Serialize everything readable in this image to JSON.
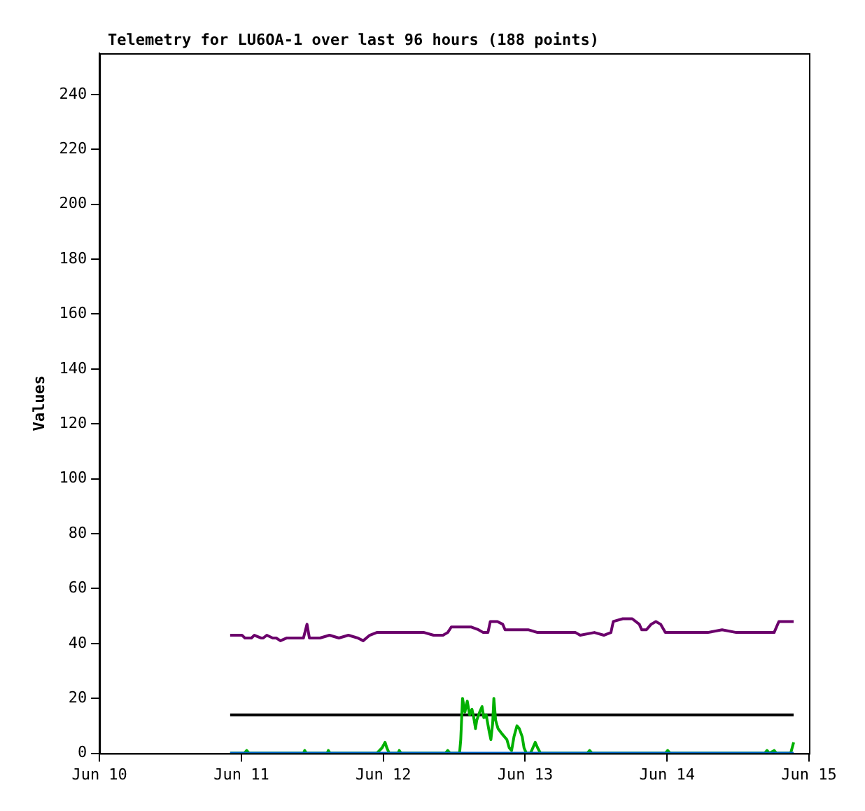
{
  "chart_data": {
    "type": "line",
    "title": "Telemetry for LU6OA-1 over last 96 hours (188 points)",
    "ylabel": "Values",
    "xlim": [
      "--06-10",
      "--06-15"
    ],
    "xticks": [
      {
        "value": "--06-10",
        "label": "Jun 10"
      },
      {
        "value": "--06-11",
        "label": "Jun 11"
      },
      {
        "value": "--06-12",
        "label": "Jun 12"
      },
      {
        "value": "--06-13",
        "label": "Jun 13"
      },
      {
        "value": "--06-14",
        "label": "Jun 14"
      },
      {
        "value": "--06-15",
        "label": "Jun 15"
      }
    ],
    "ylim": [
      0,
      255
    ],
    "yticks": [
      0,
      20,
      40,
      60,
      80,
      100,
      120,
      140,
      160,
      180,
      200,
      220,
      240
    ],
    "grid": false,
    "legend": false,
    "series": [
      {
        "color": "#6b006b",
        "x": [
          "--06-10T22:06",
          "--06-11T00:06",
          "--06-11T00:36",
          "--06-11T01:42",
          "--06-11T02:12",
          "--06-11T03:18",
          "--06-11T03:42",
          "--06-11T04:18",
          "--06-11T05:18",
          "--06-11T05:54",
          "--06-11T06:36",
          "--06-11T07:42",
          "--06-11T10:30",
          "--06-11T11:06",
          "--06-11T11:30",
          "--06-11T13:18",
          "--06-11T14:54",
          "--06-11T16:30",
          "--06-11T18:06",
          "--06-11T19:42",
          "--06-11T20:36",
          "--06-11T21:42",
          "--06-11T22:54",
          "--06-12T00:30",
          "--06-12T02:06",
          "--06-12T05:18",
          "--06-12T06:54",
          "--06-12T08:30",
          "--06-12T10:06",
          "--06-12T10:54",
          "--06-12T11:30",
          "--06-12T13:18",
          "--06-12T14:54",
          "--06-12T16:06",
          "--06-12T16:54",
          "--06-12T17:42",
          "--06-12T18:06",
          "--06-12T19:18",
          "--06-12T20:12",
          "--06-12T20:36",
          "--06-13T00:30",
          "--06-13T02:06",
          "--06-13T03:42",
          "--06-13T08:30",
          "--06-13T09:18",
          "--06-13T11:42",
          "--06-13T13:18",
          "--06-13T14:30",
          "--06-13T14:54",
          "--06-13T16:30",
          "--06-13T18:06",
          "--06-13T19:18",
          "--06-13T19:42",
          "--06-13T20:30",
          "--06-13T21:18",
          "--06-13T22:06",
          "--06-13T22:54",
          "--06-13T23:42",
          "--06-14T01:18",
          "--06-14T02:06",
          "--06-14T03:42",
          "--06-14T06:54",
          "--06-14T09:18",
          "--06-14T11:42",
          "--06-14T18:06",
          "--06-14T18:54",
          "--06-14T21:24"
        ],
        "values": [
          43,
          43,
          42,
          42,
          43,
          42,
          42,
          43,
          42,
          42,
          41,
          42,
          42,
          47,
          42,
          42,
          43,
          42,
          43,
          42,
          41,
          43,
          44,
          44,
          44,
          44,
          44,
          43,
          43,
          44,
          46,
          46,
          46,
          45,
          44,
          44,
          48,
          48,
          47,
          45,
          45,
          44,
          44,
          44,
          43,
          44,
          43,
          44,
          48,
          49,
          49,
          47,
          45,
          45,
          47,
          48,
          47,
          44,
          44,
          44,
          44,
          44,
          45,
          44,
          44,
          48,
          48
        ]
      },
      {
        "color": "#000000",
        "x": [
          "--06-10T22:06",
          "--06-14T21:24"
        ],
        "values": [
          14,
          14
        ]
      },
      {
        "color": "#00b000",
        "x": [
          "--06-10T22:06",
          "--06-11T00:30",
          "--06-11T00:54",
          "--06-11T01:18",
          "--06-11T10:30",
          "--06-11T10:42",
          "--06-11T11:00",
          "--06-11T14:30",
          "--06-11T14:42",
          "--06-11T15:00",
          "--06-11T22:54",
          "--06-11T23:48",
          "--06-12T00:18",
          "--06-12T00:36",
          "--06-12T01:00",
          "--06-12T02:30",
          "--06-12T02:42",
          "--06-12T03:00",
          "--06-12T10:30",
          "--06-12T10:54",
          "--06-12T11:18",
          "--06-12T12:54",
          "--06-12T13:06",
          "--06-12T13:24",
          "--06-12T13:48",
          "--06-12T14:12",
          "--06-12T14:36",
          "--06-12T15:00",
          "--06-12T15:18",
          "--06-12T15:36",
          "--06-12T15:48",
          "--06-12T16:18",
          "--06-12T16:42",
          "--06-12T17:00",
          "--06-12T17:24",
          "--06-12T17:54",
          "--06-12T18:12",
          "--06-12T18:30",
          "--06-12T18:42",
          "--06-12T19:00",
          "--06-12T19:24",
          "--06-12T20:06",
          "--06-12T20:54",
          "--06-12T21:18",
          "--06-12T21:42",
          "--06-12T22:06",
          "--06-12T22:36",
          "--06-12T23:00",
          "--06-12T23:30",
          "--06-12T23:48",
          "--06-13T00:12",
          "--06-13T00:54",
          "--06-13T01:18",
          "--06-13T01:42",
          "--06-13T02:06",
          "--06-13T02:36",
          "--06-13T03:18",
          "--06-13T10:30",
          "--06-13T10:54",
          "--06-13T11:18",
          "--06-13T12:06",
          "--06-13T23:42",
          "--06-14T00:06",
          "--06-14T00:30",
          "--06-14T16:30",
          "--06-14T16:54",
          "--06-14T17:18",
          "--06-14T18:06",
          "--06-14T18:30",
          "--06-14T20:54",
          "--06-14T21:24"
        ],
        "values": [
          0,
          0,
          1,
          0,
          0,
          1,
          0,
          0,
          1,
          0,
          0,
          2,
          4,
          2,
          0,
          0,
          1,
          0,
          0,
          1,
          0,
          0,
          5,
          20,
          15,
          19,
          14,
          16,
          13,
          9,
          12,
          15,
          17,
          13,
          14,
          8,
          5,
          11,
          20,
          12,
          9,
          7,
          5,
          2,
          1,
          6,
          10,
          9,
          6,
          2,
          0,
          0,
          2,
          4,
          2,
          0,
          0,
          0,
          1,
          0,
          0,
          0,
          1,
          0,
          0,
          1,
          0,
          1,
          0,
          0,
          4
        ]
      },
      {
        "color": "#0066cc",
        "x": [
          "--06-10T22:06",
          "--06-14T21:24"
        ],
        "values": [
          0,
          0
        ]
      }
    ]
  }
}
